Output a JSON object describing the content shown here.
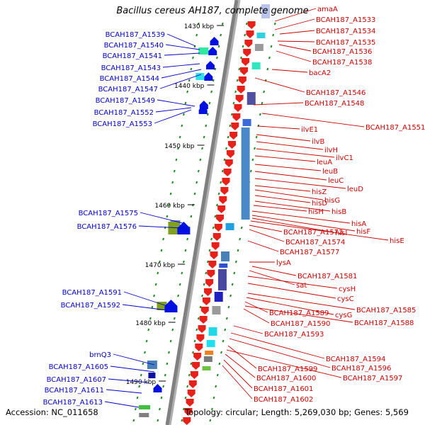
{
  "title": "Bacillus cereus AH187, complete genome",
  "accession": "Accession: NC_011658",
  "topology": "Topology: circular; Length: 5,269,030 bp; Genes: 5,569",
  "colors": {
    "left_label": "#0000cc",
    "right_label": "#cc0000",
    "backbone": "#808080",
    "tick": "#228b22"
  },
  "scale_labels": [
    "1430 kbp",
    "1440 kbp",
    "1450 kbp",
    "1460 kbp",
    "1470 kbp",
    "1480 kbp",
    "1490 kbp"
  ],
  "left_genes": [
    "BCAH187_A1539",
    "BCAH187_A1540",
    "BCAH187_A1541",
    "BCAH187_A1543",
    "BCAH187_A1544",
    "BCAH187_A1547",
    "BCAH187_A1549",
    "BCAH187_A1552",
    "BCAH187_A1553",
    "BCAH187_A1575",
    "BCAH187_A1576",
    "BCAH187_A1591",
    "BCAH187_A1592",
    "brnQ3",
    "BCAH187_A1605",
    "BCAH187_A1607",
    "BCAH187_A1611",
    "BCAH187_A1613"
  ],
  "right_genes": [
    "amaA",
    "BCAH187_A1533",
    "BCAH187_A1534",
    "BCAH187_A1535",
    "BCAH187_A1536",
    "BCAH187_A1538",
    "bacA2",
    "BCAH187_A1546",
    "BCAH187_A1548",
    "BCAH187_A1551",
    "ilvE1",
    "ilvB",
    "ilvH",
    "ilvC1",
    "leuA",
    "leuB",
    "leuC",
    "leuD",
    "hisZ",
    "hisG",
    "hisD",
    "hisB",
    "hisH",
    "hisA",
    "hisF",
    "hisI",
    "hisE",
    "BCAH187_A1573",
    "BCAH187_A1574",
    "BCAH187_A1577",
    "lysA",
    "BCAH187_A1581",
    "sat",
    "cysH",
    "cysC",
    "BCAH187_A1585",
    "cysG",
    "BCAH187_A1589",
    "BCAH187_A1588",
    "BCAH187_A1590",
    "BCAH187_A1593",
    "BCAH187_A1594",
    "BCAH187_A1596",
    "BCAH187_A1599",
    "BCAH187_A1597",
    "BCAH187_A1600",
    "BCAH187_A1601",
    "BCAH187_A1602"
  ]
}
